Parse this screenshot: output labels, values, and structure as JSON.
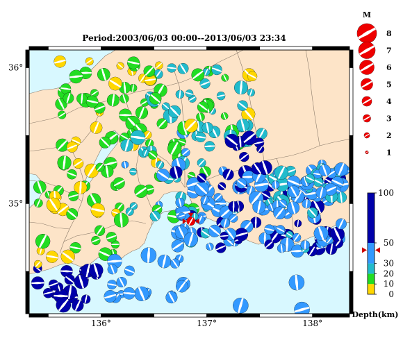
{
  "title": "Period:2003/06/03 00:00--2013/06/03 23:34",
  "lat_labels": [
    {
      "value": 36,
      "text": "36°"
    },
    {
      "value": 35,
      "text": "35°"
    }
  ],
  "lon_labels": [
    {
      "value": 136,
      "text": "136°"
    },
    {
      "value": 137,
      "text": "137°"
    },
    {
      "value": 138,
      "text": "138°"
    }
  ],
  "magnitude_legend": {
    "heading": "M",
    "entries": [
      {
        "mag": 8,
        "label": "8"
      },
      {
        "mag": 7,
        "label": "7"
      },
      {
        "mag": 6,
        "label": "6"
      },
      {
        "mag": 5,
        "label": "5"
      },
      {
        "mag": 4,
        "label": "4"
      },
      {
        "mag": 3,
        "label": "3"
      },
      {
        "mag": 2,
        "label": "2"
      },
      {
        "mag": 1,
        "label": "1"
      }
    ]
  },
  "depth_scale": {
    "label": "Depth(km)",
    "ticks": [
      {
        "value": 100,
        "label": "100"
      },
      {
        "value": 50,
        "label": "50"
      },
      {
        "value": 30,
        "label": "30"
      },
      {
        "value": 20,
        "label": "20"
      },
      {
        "value": 10,
        "label": "10"
      },
      {
        "value": 0,
        "label": "0"
      }
    ],
    "bands": [
      {
        "from": 0,
        "to": 10,
        "color": "#ffd700"
      },
      {
        "from": 10,
        "to": 20,
        "color": "#22dd22"
      },
      {
        "from": 20,
        "to": 30,
        "color": "#22bbcc"
      },
      {
        "from": 30,
        "to": 50,
        "color": "#3399ff"
      },
      {
        "from": 50,
        "to": 100,
        "color": "#0000aa"
      }
    ],
    "marker_depth": 43
  },
  "colors": {
    "land": "#fde4c8",
    "sea": "#d8f8ff",
    "border": "#8a7a6a",
    "focus": "#ee0000",
    "marker": "#cc0000"
  },
  "featured_event": {
    "lon": 136.85,
    "lat": 34.87,
    "mag": 4.3,
    "depth": 43
  }
}
